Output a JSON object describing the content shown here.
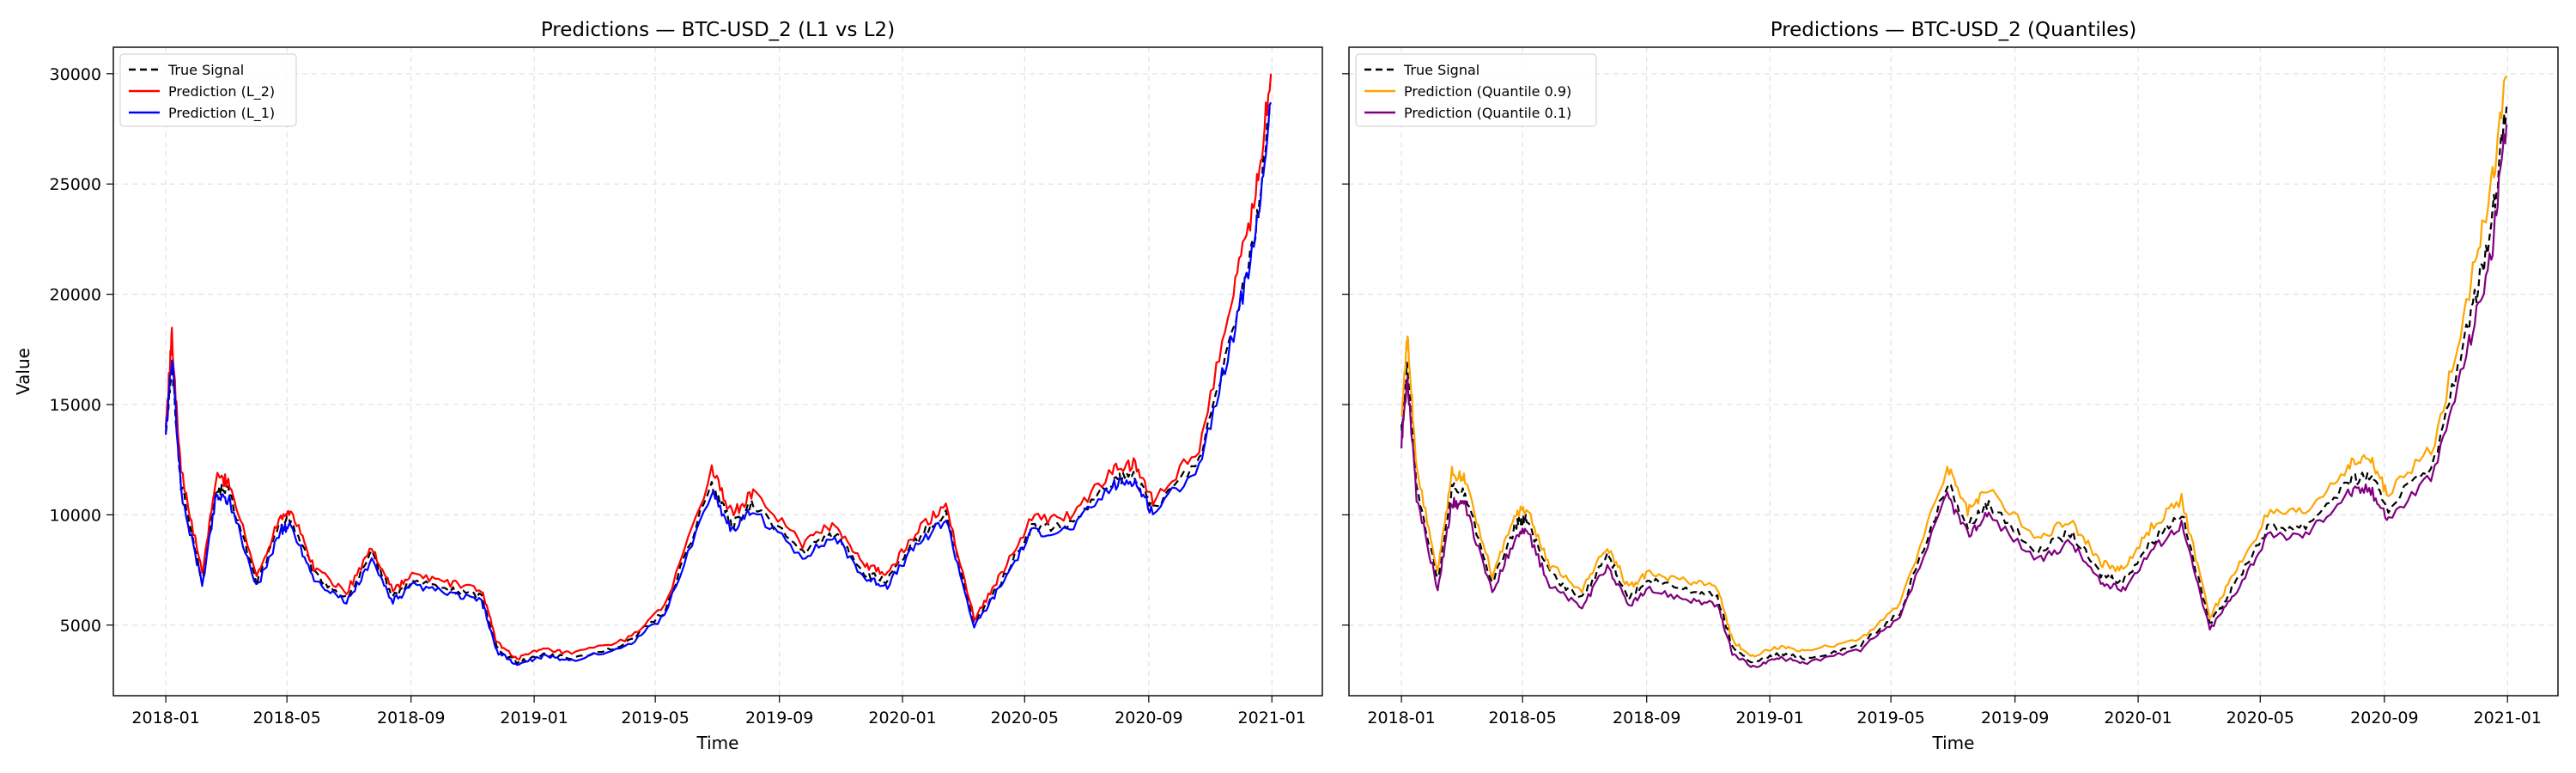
{
  "figure": {
    "background": "#ffffff"
  },
  "chart_data": [
    {
      "type": "line",
      "title": "Predictions — BTC-USD_2 (L1 vs L2)",
      "xlabel": "Time",
      "ylabel": "Value",
      "x_tick_labels": [
        "2018-01",
        "2018-05",
        "2018-09",
        "2019-01",
        "2019-05",
        "2019-09",
        "2020-01",
        "2020-05",
        "2020-09",
        "2021-01"
      ],
      "y_tick_labels": [
        "5000",
        "10000",
        "15000",
        "20000",
        "25000",
        "30000"
      ],
      "xlim": [
        "2017-11-10",
        "2021-02-20"
      ],
      "ylim": [
        1800,
        31200
      ],
      "grid": true,
      "legend": {
        "placement": "upper-left",
        "entries": [
          {
            "label": "True Signal",
            "color": "#000000",
            "style": "dashed"
          },
          {
            "label": "Prediction (L_2)",
            "color": "#ff0000",
            "style": "solid"
          },
          {
            "label": "Prediction (L_1)",
            "color": "#0000ff",
            "style": "solid"
          }
        ]
      },
      "x_dates": [
        "2018-01-01",
        "2018-01-07",
        "2018-01-16",
        "2018-02-06",
        "2018-02-20",
        "2018-03-05",
        "2018-04-01",
        "2018-04-25",
        "2018-05-05",
        "2018-05-28",
        "2018-06-29",
        "2018-07-24",
        "2018-08-14",
        "2018-09-04",
        "2018-10-10",
        "2018-11-10",
        "2018-11-25",
        "2018-12-15",
        "2019-01-10",
        "2019-02-07",
        "2019-04-01",
        "2019-05-10",
        "2019-06-26",
        "2019-07-16",
        "2019-08-06",
        "2019-09-24",
        "2019-10-26",
        "2019-11-25",
        "2019-12-17",
        "2020-01-14",
        "2020-02-13",
        "2020-03-12",
        "2020-04-05",
        "2020-05-08",
        "2020-06-15",
        "2020-07-27",
        "2020-08-17",
        "2020-09-05",
        "2020-10-21",
        "2020-11-24",
        "2020-12-16",
        "2020-12-31"
      ],
      "series": [
        {
          "name": "True Signal",
          "color": "#000000",
          "dash": "8,5",
          "values": [
            13800,
            16800,
            11400,
            7000,
            11200,
            11000,
            6900,
            9600,
            9800,
            7300,
            6200,
            8200,
            6300,
            7000,
            6600,
            6300,
            4000,
            3300,
            3700,
            3500,
            4100,
            5600,
            11400,
            9500,
            10500,
            8300,
            9200,
            7300,
            7000,
            8800,
            10100,
            5000,
            6800,
            9400,
            9500,
            11500,
            11800,
            10300,
            12500,
            18700,
            23000,
            28500
          ]
        },
        {
          "name": "Prediction (L_2)",
          "color": "#ff0000",
          "dash": "",
          "values": [
            14000,
            18100,
            12000,
            7300,
            11700,
            11500,
            7200,
            10000,
            10200,
            7600,
            6500,
            8500,
            6600,
            7300,
            6900,
            6600,
            4200,
            3500,
            3900,
            3700,
            4300,
            5800,
            12000,
            10000,
            11000,
            8700,
            9600,
            7700,
            7300,
            9200,
            10500,
            5300,
            7100,
            9800,
            9900,
            12000,
            12300,
            10700,
            13000,
            20300,
            24500,
            30000
          ]
        },
        {
          "name": "Prediction (L_1)",
          "color": "#0000ff",
          "dash": "",
          "values": [
            13600,
            17200,
            11100,
            6800,
            10900,
            10700,
            6700,
            9300,
            9500,
            7100,
            6000,
            7900,
            6100,
            6800,
            6400,
            6100,
            3800,
            3200,
            3600,
            3400,
            4000,
            5400,
            11100,
            9300,
            10200,
            8100,
            9000,
            7100,
            6800,
            8600,
            9800,
            4900,
            6600,
            9200,
            9300,
            11300,
            11600,
            10100,
            12200,
            18300,
            22500,
            28700
          ]
        }
      ]
    },
    {
      "type": "line",
      "title": "Predictions — BTC-USD_2 (Quantiles)",
      "xlabel": "Time",
      "ylabel": "",
      "x_tick_labels": [
        "2018-01",
        "2018-05",
        "2018-09",
        "2019-01",
        "2019-05",
        "2019-09",
        "2020-01",
        "2020-05",
        "2020-09",
        "2021-01"
      ],
      "y_tick_labels": [],
      "xlim": [
        "2017-11-10",
        "2021-02-20"
      ],
      "ylim": [
        1800,
        31200
      ],
      "grid": true,
      "legend": {
        "placement": "upper-left",
        "entries": [
          {
            "label": "True Signal",
            "color": "#000000",
            "style": "dashed"
          },
          {
            "label": "Prediction (Quantile 0.9)",
            "color": "#ffa500",
            "style": "solid"
          },
          {
            "label": "Prediction (Quantile 0.1)",
            "color": "#800080",
            "style": "solid"
          }
        ]
      },
      "x_dates": [
        "2018-01-01",
        "2018-01-07",
        "2018-01-16",
        "2018-02-06",
        "2018-02-20",
        "2018-03-05",
        "2018-04-01",
        "2018-04-25",
        "2018-05-05",
        "2018-05-28",
        "2018-06-29",
        "2018-07-24",
        "2018-08-14",
        "2018-09-04",
        "2018-10-10",
        "2018-11-10",
        "2018-11-25",
        "2018-12-15",
        "2019-01-10",
        "2019-02-07",
        "2019-04-01",
        "2019-05-10",
        "2019-06-26",
        "2019-07-16",
        "2019-08-06",
        "2019-09-24",
        "2019-10-26",
        "2019-11-25",
        "2019-12-17",
        "2020-01-14",
        "2020-02-13",
        "2020-03-12",
        "2020-04-05",
        "2020-05-08",
        "2020-06-15",
        "2020-07-27",
        "2020-08-17",
        "2020-09-05",
        "2020-10-21",
        "2020-11-24",
        "2020-12-16",
        "2020-12-31"
      ],
      "series": [
        {
          "name": "True Signal",
          "color": "#000000",
          "dash": "8,5",
          "values": [
            13800,
            16800,
            11400,
            7000,
            11200,
            11000,
            6900,
            9600,
            9800,
            7300,
            6200,
            8200,
            6300,
            7000,
            6600,
            6300,
            4000,
            3300,
            3700,
            3500,
            4100,
            5600,
            11400,
            9500,
            10500,
            8300,
            9200,
            7300,
            7000,
            8800,
            10100,
            5000,
            6800,
            9400,
            9500,
            11500,
            11800,
            10300,
            12500,
            18700,
            23000,
            28500
          ]
        },
        {
          "name": "Prediction (Quantile 0.9)",
          "color": "#ffa500",
          "dash": "",
          "values": [
            14200,
            18200,
            12100,
            7400,
            11900,
            11600,
            7300,
            10100,
            10300,
            7700,
            6600,
            8600,
            6700,
            7400,
            7000,
            6700,
            4300,
            3600,
            4000,
            3800,
            4400,
            5900,
            12200,
            10200,
            11200,
            8900,
            9800,
            7800,
            7500,
            9400,
            10700,
            5400,
            7300,
            10000,
            10100,
            12200,
            12600,
            10900,
            13200,
            20200,
            24800,
            29900
          ]
        },
        {
          "name": "Prediction (Quantile 0.1)",
          "color": "#800080",
          "dash": "",
          "values": [
            13300,
            16200,
            10800,
            6600,
            10600,
            10400,
            6500,
            9100,
            9300,
            6800,
            5800,
            7700,
            5900,
            6600,
            6200,
            5900,
            3700,
            3100,
            3500,
            3300,
            3900,
            5300,
            10900,
            9100,
            10000,
            7900,
            8800,
            6900,
            6600,
            8400,
            9600,
            4800,
            6400,
            9000,
            9100,
            11000,
            11200,
            9800,
            12000,
            17800,
            21800,
            27700
          ]
        }
      ]
    }
  ]
}
